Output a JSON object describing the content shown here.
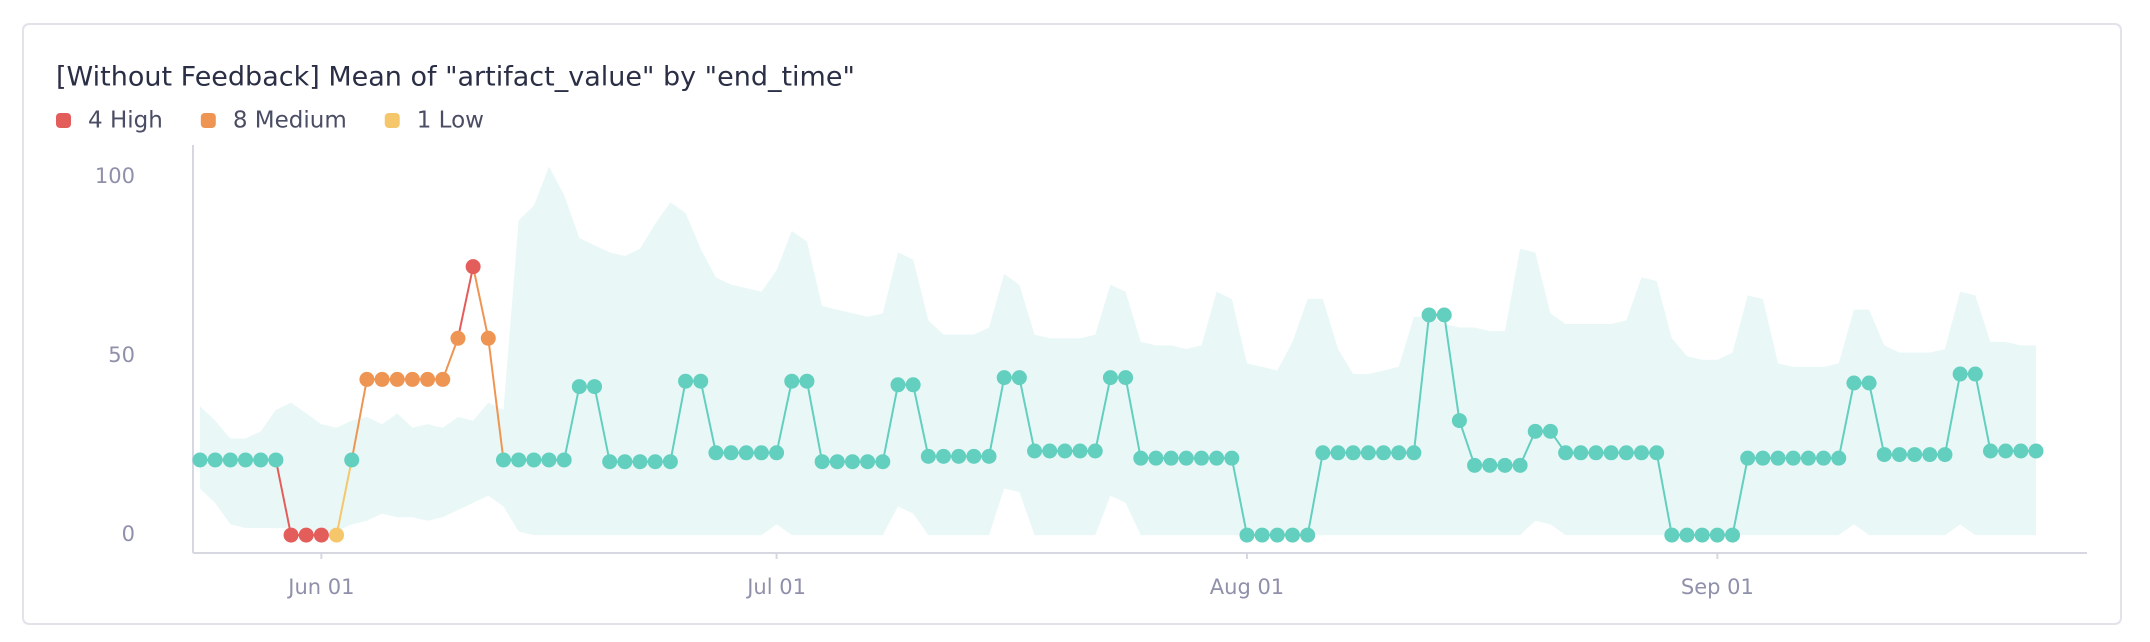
{
  "chart_data": {
    "type": "line",
    "title": "[Without Feedback] Mean of \"artifact_value\" by \"end_time\"",
    "legend": [
      {
        "label": "4 High",
        "color": "#e35d5b"
      },
      {
        "label": "8 Medium",
        "color": "#ef9553"
      },
      {
        "label": "1 Low",
        "color": "#f5c76a"
      }
    ],
    "x": [
      "05-24",
      "05-25",
      "05-26",
      "05-27",
      "05-28",
      "05-29",
      "05-30",
      "05-31",
      "06-01",
      "06-02",
      "06-03",
      "06-04",
      "06-05",
      "06-06",
      "06-07",
      "06-08",
      "06-09",
      "06-10",
      "06-11",
      "06-12",
      "06-13",
      "06-14",
      "06-15",
      "06-16",
      "06-17",
      "06-18",
      "06-19",
      "06-20",
      "06-21",
      "06-22",
      "06-23",
      "06-24",
      "06-25",
      "06-26",
      "06-27",
      "06-28",
      "06-29",
      "06-30",
      "07-01",
      "07-02",
      "07-03",
      "07-04",
      "07-05",
      "07-06",
      "07-07",
      "07-08",
      "07-09",
      "07-10",
      "07-11",
      "07-12",
      "07-13",
      "07-14",
      "07-15",
      "07-16",
      "07-17",
      "07-18",
      "07-19",
      "07-20",
      "07-21",
      "07-22",
      "07-23",
      "07-24",
      "07-25",
      "07-26",
      "07-27",
      "07-28",
      "07-29",
      "07-30",
      "07-31",
      "08-01",
      "08-02",
      "08-03",
      "08-04",
      "08-05",
      "08-06",
      "08-07",
      "08-08",
      "08-09",
      "08-10",
      "08-11",
      "08-12",
      "08-13",
      "08-14",
      "08-15",
      "08-16",
      "08-17",
      "08-18",
      "08-19",
      "08-20",
      "08-21",
      "08-22",
      "08-23",
      "08-24",
      "08-25",
      "08-26",
      "08-27",
      "08-28",
      "08-29",
      "08-30",
      "08-31",
      "09-01",
      "09-02",
      "09-03",
      "09-04",
      "09-05",
      "09-06",
      "09-07",
      "09-08",
      "09-09",
      "09-10",
      "09-11",
      "09-12",
      "09-13",
      "09-14",
      "09-15",
      "09-16",
      "09-17",
      "09-18",
      "09-19",
      "09-20",
      "09-21",
      "09-22"
    ],
    "series": [
      {
        "color": "#63cfbf",
        "values": [
          21,
          21,
          21,
          21,
          21,
          21,
          0,
          0,
          0,
          0,
          21,
          43.5,
          43.5,
          43.5,
          43.5,
          43.5,
          43.5,
          55,
          75,
          55,
          21,
          21,
          21,
          21,
          21,
          41.5,
          41.5,
          20.5,
          20.5,
          20.5,
          20.5,
          20.5,
          43,
          43,
          23,
          23,
          23,
          23,
          23,
          43,
          43,
          20.5,
          20.5,
          20.5,
          20.5,
          20.5,
          42,
          42,
          22,
          22,
          22,
          22,
          22,
          44,
          44,
          23.5,
          23.5,
          23.5,
          23.5,
          23.5,
          44,
          44,
          21.5,
          21.5,
          21.5,
          21.5,
          21.5,
          21.5,
          21.5,
          0,
          0,
          0,
          0,
          0,
          23,
          23,
          23,
          23,
          23,
          23,
          23,
          61.5,
          61.5,
          32,
          19.5,
          19.5,
          19.5,
          19.5,
          29,
          29,
          23,
          23,
          23,
          23,
          23,
          23,
          23,
          0,
          0,
          0,
          0,
          0,
          21.5,
          21.5,
          21.5,
          21.5,
          21.5,
          21.5,
          21.5,
          42.5,
          42.5,
          22.5,
          22.5,
          22.5,
          22.5,
          22.5,
          45,
          45,
          23.5,
          23.5,
          23.5,
          23.5
        ],
        "point_colors": [
          "#63cfbf",
          "#63cfbf",
          "#63cfbf",
          "#63cfbf",
          "#63cfbf",
          "#63cfbf",
          "#e35d5b",
          "#e35d5b",
          "#e35d5b",
          "#f5c76a",
          "#63cfbf",
          "#ef9553",
          "#ef9553",
          "#ef9553",
          "#ef9553",
          "#ef9553",
          "#ef9553",
          "#ef9553",
          "#e35d5b",
          "#ef9553",
          "#63cfbf",
          "#63cfbf",
          "#63cfbf",
          "#63cfbf",
          "#63cfbf",
          "#63cfbf",
          "#63cfbf",
          "#63cfbf",
          "#63cfbf",
          "#63cfbf",
          "#63cfbf",
          "#63cfbf",
          "#63cfbf",
          "#63cfbf",
          "#63cfbf",
          "#63cfbf",
          "#63cfbf",
          "#63cfbf",
          "#63cfbf",
          "#63cfbf",
          "#63cfbf",
          "#63cfbf",
          "#63cfbf",
          "#63cfbf",
          "#63cfbf",
          "#63cfbf",
          "#63cfbf",
          "#63cfbf",
          "#63cfbf",
          "#63cfbf",
          "#63cfbf",
          "#63cfbf",
          "#63cfbf",
          "#63cfbf",
          "#63cfbf",
          "#63cfbf",
          "#63cfbf",
          "#63cfbf",
          "#63cfbf",
          "#63cfbf",
          "#63cfbf",
          "#63cfbf",
          "#63cfbf",
          "#63cfbf",
          "#63cfbf",
          "#63cfbf",
          "#63cfbf",
          "#63cfbf",
          "#63cfbf",
          "#63cfbf",
          "#63cfbf",
          "#63cfbf",
          "#63cfbf",
          "#63cfbf",
          "#63cfbf",
          "#63cfbf",
          "#63cfbf",
          "#63cfbf",
          "#63cfbf",
          "#63cfbf",
          "#63cfbf",
          "#63cfbf",
          "#63cfbf",
          "#63cfbf",
          "#63cfbf",
          "#63cfbf",
          "#63cfbf",
          "#63cfbf",
          "#63cfbf",
          "#63cfbf",
          "#63cfbf",
          "#63cfbf",
          "#63cfbf",
          "#63cfbf",
          "#63cfbf",
          "#63cfbf",
          "#63cfbf",
          "#63cfbf",
          "#63cfbf",
          "#63cfbf",
          "#63cfbf",
          "#63cfbf",
          "#63cfbf",
          "#63cfbf",
          "#63cfbf",
          "#63cfbf",
          "#63cfbf",
          "#63cfbf",
          "#63cfbf",
          "#63cfbf",
          "#63cfbf",
          "#63cfbf",
          "#63cfbf",
          "#63cfbf",
          "#63cfbf",
          "#63cfbf",
          "#63cfbf",
          "#63cfbf",
          "#63cfbf",
          "#63cfbf",
          "#63cfbf",
          "#63cfbf"
        ]
      }
    ],
    "band": {
      "color": "#e9f8f7",
      "upper": [
        36,
        32,
        27,
        27,
        29,
        35,
        37,
        34,
        31,
        30,
        32,
        33,
        31,
        34,
        30,
        31,
        30,
        33,
        32,
        37,
        35,
        88,
        92,
        103,
        95,
        83,
        81,
        79,
        78,
        80,
        87,
        93,
        90,
        80,
        72,
        70,
        69,
        68,
        74,
        85,
        82,
        64,
        63,
        62,
        61,
        62,
        79,
        77,
        60,
        56,
        56,
        56,
        58,
        73,
        70,
        56,
        55,
        55,
        55,
        56,
        70,
        68,
        54,
        53,
        53,
        52,
        53,
        68,
        66,
        48,
        47,
        46,
        54,
        66,
        66,
        52,
        45,
        45,
        46,
        47,
        61,
        61,
        59,
        58,
        58,
        57,
        57,
        80,
        79,
        62,
        59,
        59,
        59,
        59,
        60,
        72,
        71,
        55,
        50,
        49,
        49,
        51,
        67,
        66,
        48,
        47,
        47,
        47,
        48,
        63,
        63,
        53,
        51,
        51,
        51,
        52,
        68,
        67,
        54,
        54,
        53,
        53
      ],
      "lower": [
        13,
        9,
        3,
        2,
        2,
        2,
        2,
        1,
        1,
        1,
        3,
        4,
        6,
        5,
        5,
        4,
        5,
        7,
        9,
        11,
        8,
        1,
        0,
        0,
        0,
        0,
        0,
        0,
        0,
        0,
        0,
        0,
        0,
        0,
        0,
        0,
        0,
        0,
        3,
        0,
        0,
        0,
        0,
        0,
        0,
        0,
        8,
        6,
        0,
        0,
        0,
        0,
        0,
        13,
        12,
        0,
        0,
        0,
        0,
        0,
        11,
        9,
        0,
        0,
        0,
        0,
        0,
        0,
        0,
        0,
        0,
        0,
        0,
        0,
        0,
        0,
        0,
        0,
        0,
        0,
        0,
        0,
        0,
        0,
        0,
        0,
        0,
        0,
        4,
        3,
        0,
        0,
        0,
        0,
        0,
        0,
        0,
        0,
        0,
        0,
        0,
        0,
        0,
        0,
        0,
        0,
        0,
        0,
        0,
        3,
        0,
        0,
        0,
        0,
        0,
        0,
        3,
        0,
        0,
        0,
        0,
        0
      ]
    },
    "ylim": [
      -5,
      109
    ],
    "yticks": [
      0,
      50,
      100
    ],
    "xticks": [
      {
        "value": "06-01",
        "label": "Jun 01"
      },
      {
        "value": "07-01",
        "label": "Jul 01"
      },
      {
        "value": "08-01",
        "label": "Aug 01"
      },
      {
        "value": "09-01",
        "label": "Sep 01"
      }
    ],
    "grid": false
  }
}
